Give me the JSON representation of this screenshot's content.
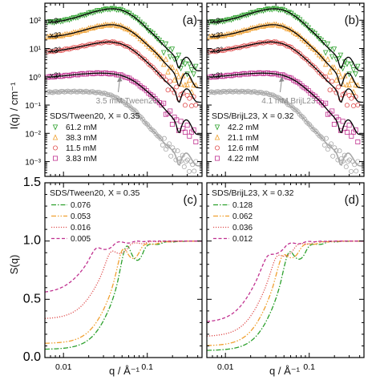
{
  "figure": {
    "y_label_top": "I(q) / cm⁻¹",
    "y_label_bottom": "S(q)",
    "x_label": "q / Å⁻¹"
  },
  "colors": {
    "green": "#2ca02c",
    "orange": "#f0a030",
    "red": "#e05050",
    "magenta": "#c0308f",
    "gray": "#a8a8a8",
    "fit": "#000000"
  },
  "chart_data": [
    {
      "id": "a",
      "type": "scatter",
      "panel_label": "(a)",
      "xscale": "log",
      "yscale": "log",
      "xlim": [
        0.006,
        0.45
      ],
      "ylim": [
        0.0003,
        400
      ],
      "x_ticks": [
        "0.01",
        "0.1"
      ],
      "y_ticks": [
        "10⁻³",
        "10⁻²",
        "10⁻¹",
        "10⁰",
        "10¹",
        "10²"
      ],
      "legend_title": "SDS/Tween20, X = 0.35",
      "legend_position": "lower-left",
      "scale_factors": [
        "x3⁴",
        "x3³",
        "x3²",
        "x3¹"
      ],
      "annotation": "3.5 mM Tween20",
      "series": [
        {
          "name": "61.2 mM",
          "color_key": "green",
          "marker": "triangle-down",
          "scale": 81,
          "points": [
            [
              0.0065,
              1.05
            ],
            [
              0.008,
              1.08
            ],
            [
              0.01,
              1.2
            ],
            [
              0.013,
              1.45
            ],
            [
              0.017,
              1.85
            ],
            [
              0.022,
              2.35
            ],
            [
              0.028,
              2.8
            ],
            [
              0.034,
              3.1
            ],
            [
              0.04,
              3.15
            ],
            [
              0.048,
              2.9
            ],
            [
              0.058,
              2.3
            ],
            [
              0.07,
              1.6
            ],
            [
              0.085,
              1.0
            ],
            [
              0.1,
              0.62
            ],
            [
              0.13,
              0.3
            ],
            [
              0.16,
              0.15
            ],
            [
              0.2,
              0.08
            ],
            [
              0.24,
              0.05
            ],
            [
              0.28,
              0.03
            ],
            [
              0.32,
              0.025
            ],
            [
              0.38,
              0.02
            ]
          ]
        },
        {
          "name": "38.3 mM",
          "color_key": "orange",
          "marker": "triangle-up",
          "scale": 27,
          "points": [
            [
              0.0065,
              0.95
            ],
            [
              0.008,
              1.0
            ],
            [
              0.01,
              1.1
            ],
            [
              0.013,
              1.3
            ],
            [
              0.017,
              1.6
            ],
            [
              0.022,
              2.0
            ],
            [
              0.028,
              2.35
            ],
            [
              0.034,
              2.55
            ],
            [
              0.04,
              2.55
            ],
            [
              0.048,
              2.3
            ],
            [
              0.058,
              1.8
            ],
            [
              0.07,
              1.25
            ],
            [
              0.085,
              0.78
            ],
            [
              0.1,
              0.5
            ],
            [
              0.13,
              0.24
            ],
            [
              0.16,
              0.12
            ],
            [
              0.2,
              0.06
            ],
            [
              0.24,
              0.035
            ],
            [
              0.28,
              0.025
            ],
            [
              0.32,
              0.02
            ],
            [
              0.38,
              0.015
            ]
          ]
        },
        {
          "name": "11.5 mM",
          "color_key": "red",
          "marker": "circle",
          "scale": 9,
          "points": [
            [
              0.0065,
              0.85
            ],
            [
              0.008,
              0.9
            ],
            [
              0.01,
              1.0
            ],
            [
              0.013,
              1.15
            ],
            [
              0.017,
              1.35
            ],
            [
              0.022,
              1.6
            ],
            [
              0.028,
              1.8
            ],
            [
              0.034,
              1.9
            ],
            [
              0.04,
              1.85
            ],
            [
              0.048,
              1.65
            ],
            [
              0.058,
              1.3
            ],
            [
              0.07,
              0.9
            ],
            [
              0.085,
              0.56
            ],
            [
              0.1,
              0.36
            ],
            [
              0.13,
              0.17
            ],
            [
              0.16,
              0.085
            ],
            [
              0.2,
              0.045
            ],
            [
              0.24,
              0.028
            ],
            [
              0.28,
              0.02
            ],
            [
              0.32,
              0.018
            ],
            [
              0.38,
              0.014
            ]
          ]
        },
        {
          "name": "3.83 mM",
          "color_key": "magenta",
          "marker": "square",
          "scale": 3,
          "points": [
            [
              0.0065,
              0.32
            ],
            [
              0.008,
              0.34
            ],
            [
              0.01,
              0.36
            ],
            [
              0.013,
              0.39
            ],
            [
              0.017,
              0.42
            ],
            [
              0.022,
              0.44
            ],
            [
              0.028,
              0.45
            ],
            [
              0.034,
              0.44
            ],
            [
              0.04,
              0.42
            ],
            [
              0.048,
              0.38
            ],
            [
              0.058,
              0.31
            ],
            [
              0.07,
              0.23
            ],
            [
              0.085,
              0.15
            ],
            [
              0.1,
              0.1
            ],
            [
              0.13,
              0.05
            ],
            [
              0.16,
              0.025
            ],
            [
              0.2,
              0.012
            ],
            [
              0.24,
              0.007
            ],
            [
              0.28,
              0.005
            ],
            [
              0.32,
              0.004
            ],
            [
              0.38,
              0.003
            ]
          ]
        },
        {
          "name": "",
          "color_key": "gray",
          "marker": "circle",
          "scale": 1,
          "points": [
            [
              0.0065,
              0.28
            ],
            [
              0.008,
              0.29
            ],
            [
              0.01,
              0.3
            ],
            [
              0.013,
              0.3
            ],
            [
              0.017,
              0.3
            ],
            [
              0.022,
              0.29
            ],
            [
              0.028,
              0.27
            ],
            [
              0.034,
              0.24
            ],
            [
              0.04,
              0.2
            ],
            [
              0.048,
              0.15
            ],
            [
              0.058,
              0.1
            ],
            [
              0.07,
              0.065
            ],
            [
              0.085,
              0.035
            ],
            [
              0.1,
              0.02
            ],
            [
              0.13,
              0.009
            ],
            [
              0.16,
              0.0045
            ],
            [
              0.2,
              0.0025
            ],
            [
              0.24,
              0.0015
            ],
            [
              0.28,
              0.001
            ],
            [
              0.32,
              0.0008
            ],
            [
              0.38,
              0.0007
            ]
          ]
        }
      ]
    },
    {
      "id": "b",
      "type": "scatter",
      "panel_label": "(b)",
      "xscale": "log",
      "yscale": "log",
      "xlim": [
        0.006,
        0.45
      ],
      "ylim": [
        0.0003,
        400
      ],
      "x_ticks": [
        "0.01",
        "0.1"
      ],
      "legend_title": "SDS/BrijL23, X = 0.32",
      "legend_position": "lower-left",
      "scale_factors": [
        "x3⁴",
        "x3³",
        "x3²",
        "x3¹"
      ],
      "annotation": "4.1 mM BrijL23",
      "series": [
        {
          "name": "42.2 mM",
          "color_key": "green",
          "marker": "triangle-down",
          "scale": 81,
          "points": [
            [
              0.0065,
              1.05
            ],
            [
              0.008,
              1.08
            ],
            [
              0.01,
              1.2
            ],
            [
              0.013,
              1.45
            ],
            [
              0.017,
              1.85
            ],
            [
              0.022,
              2.35
            ],
            [
              0.028,
              2.8
            ],
            [
              0.034,
              3.1
            ],
            [
              0.04,
              3.15
            ],
            [
              0.048,
              2.9
            ],
            [
              0.058,
              2.3
            ],
            [
              0.07,
              1.6
            ],
            [
              0.085,
              1.0
            ],
            [
              0.1,
              0.62
            ],
            [
              0.13,
              0.3
            ],
            [
              0.16,
              0.15
            ],
            [
              0.2,
              0.08
            ],
            [
              0.24,
              0.05
            ],
            [
              0.28,
              0.03
            ],
            [
              0.32,
              0.025
            ],
            [
              0.38,
              0.02
            ]
          ]
        },
        {
          "name": "21.1 mM",
          "color_key": "orange",
          "marker": "triangle-up",
          "scale": 27,
          "points": [
            [
              0.0065,
              0.95
            ],
            [
              0.008,
              1.0
            ],
            [
              0.01,
              1.1
            ],
            [
              0.013,
              1.3
            ],
            [
              0.017,
              1.6
            ],
            [
              0.022,
              2.0
            ],
            [
              0.028,
              2.35
            ],
            [
              0.034,
              2.55
            ],
            [
              0.04,
              2.55
            ],
            [
              0.048,
              2.3
            ],
            [
              0.058,
              1.8
            ],
            [
              0.07,
              1.25
            ],
            [
              0.085,
              0.78
            ],
            [
              0.1,
              0.5
            ],
            [
              0.13,
              0.24
            ],
            [
              0.16,
              0.12
            ],
            [
              0.2,
              0.06
            ],
            [
              0.24,
              0.035
            ],
            [
              0.28,
              0.025
            ],
            [
              0.32,
              0.02
            ],
            [
              0.38,
              0.015
            ]
          ]
        },
        {
          "name": "12.6 mM",
          "color_key": "red",
          "marker": "circle",
          "scale": 9,
          "points": [
            [
              0.0065,
              0.85
            ],
            [
              0.008,
              0.9
            ],
            [
              0.01,
              1.0
            ],
            [
              0.013,
              1.15
            ],
            [
              0.017,
              1.35
            ],
            [
              0.022,
              1.6
            ],
            [
              0.028,
              1.8
            ],
            [
              0.034,
              1.9
            ],
            [
              0.04,
              1.85
            ],
            [
              0.048,
              1.65
            ],
            [
              0.058,
              1.3
            ],
            [
              0.07,
              0.9
            ],
            [
              0.085,
              0.56
            ],
            [
              0.1,
              0.36
            ],
            [
              0.13,
              0.17
            ],
            [
              0.16,
              0.085
            ],
            [
              0.2,
              0.045
            ],
            [
              0.24,
              0.028
            ],
            [
              0.28,
              0.02
            ],
            [
              0.32,
              0.018
            ],
            [
              0.38,
              0.014
            ]
          ]
        },
        {
          "name": "4.22 mM",
          "color_key": "magenta",
          "marker": "square",
          "scale": 3,
          "points": [
            [
              0.0065,
              0.32
            ],
            [
              0.008,
              0.34
            ],
            [
              0.01,
              0.36
            ],
            [
              0.013,
              0.39
            ],
            [
              0.017,
              0.42
            ],
            [
              0.022,
              0.44
            ],
            [
              0.028,
              0.45
            ],
            [
              0.034,
              0.44
            ],
            [
              0.04,
              0.42
            ],
            [
              0.048,
              0.38
            ],
            [
              0.058,
              0.31
            ],
            [
              0.07,
              0.23
            ],
            [
              0.085,
              0.15
            ],
            [
              0.1,
              0.1
            ],
            [
              0.13,
              0.05
            ],
            [
              0.16,
              0.025
            ],
            [
              0.2,
              0.012
            ],
            [
              0.24,
              0.007
            ],
            [
              0.28,
              0.005
            ],
            [
              0.32,
              0.004
            ],
            [
              0.38,
              0.003
            ]
          ]
        },
        {
          "name": "",
          "color_key": "gray",
          "marker": "circle",
          "scale": 1,
          "points": [
            [
              0.0065,
              0.28
            ],
            [
              0.008,
              0.29
            ],
            [
              0.01,
              0.3
            ],
            [
              0.013,
              0.3
            ],
            [
              0.017,
              0.3
            ],
            [
              0.022,
              0.29
            ],
            [
              0.028,
              0.27
            ],
            [
              0.034,
              0.24
            ],
            [
              0.04,
              0.2
            ],
            [
              0.048,
              0.15
            ],
            [
              0.058,
              0.1
            ],
            [
              0.07,
              0.065
            ],
            [
              0.085,
              0.035
            ],
            [
              0.1,
              0.02
            ],
            [
              0.13,
              0.009
            ],
            [
              0.16,
              0.0045
            ],
            [
              0.2,
              0.0025
            ],
            [
              0.24,
              0.0015
            ],
            [
              0.28,
              0.001
            ],
            [
              0.32,
              0.0008
            ],
            [
              0.38,
              0.0007
            ]
          ]
        }
      ]
    },
    {
      "id": "c",
      "type": "line",
      "panel_label": "(c)",
      "xscale": "log",
      "yscale": "linear",
      "xlim": [
        0.006,
        0.45
      ],
      "ylim": [
        0,
        1.5
      ],
      "x_ticks": [
        "0.01",
        "0.1"
      ],
      "y_ticks": [
        "0.0",
        "0.5",
        "1.0",
        "1.5"
      ],
      "legend_title": "SDS/Tween20, X = 0.35",
      "legend_position": "upper-left",
      "series": [
        {
          "name": "0.076",
          "color_key": "green",
          "dash": "dash-dot",
          "peak_q": 0.055,
          "s0": 0.07,
          "peak_height": 1.21
        },
        {
          "name": "0.053",
          "color_key": "orange",
          "dash": "dash-dot-dot",
          "peak_q": 0.05,
          "s0": 0.12,
          "peak_height": 1.17
        },
        {
          "name": "0.016",
          "color_key": "red",
          "dash": "dotted",
          "peak_q": 0.036,
          "s0": 0.33,
          "peak_height": 1.09
        },
        {
          "name": "0.005",
          "color_key": "magenta",
          "dash": "dashed",
          "peak_q": 0.024,
          "s0": 0.55,
          "peak_height": 1.06
        }
      ]
    },
    {
      "id": "d",
      "type": "line",
      "panel_label": "(d)",
      "xscale": "log",
      "yscale": "linear",
      "xlim": [
        0.006,
        0.45
      ],
      "ylim": [
        0,
        1.5
      ],
      "x_ticks": [
        "0.01",
        "0.1"
      ],
      "legend_title": "SDS/BrijL23, X = 0.32",
      "legend_position": "upper-left",
      "series": [
        {
          "name": "0.128",
          "color_key": "green",
          "dash": "dash-dot",
          "peak_q": 0.056,
          "s0": 0.06,
          "peak_height": 1.16
        },
        {
          "name": "0.062",
          "color_key": "orange",
          "dash": "dash-dot-dot",
          "peak_q": 0.047,
          "s0": 0.1,
          "peak_height": 1.12
        },
        {
          "name": "0.036",
          "color_key": "red",
          "dash": "dotted",
          "peak_q": 0.04,
          "s0": 0.18,
          "peak_height": 1.09
        },
        {
          "name": "0.012",
          "color_key": "magenta",
          "dash": "dashed",
          "peak_q": 0.031,
          "s0": 0.3,
          "peak_height": 1.06
        }
      ]
    }
  ]
}
